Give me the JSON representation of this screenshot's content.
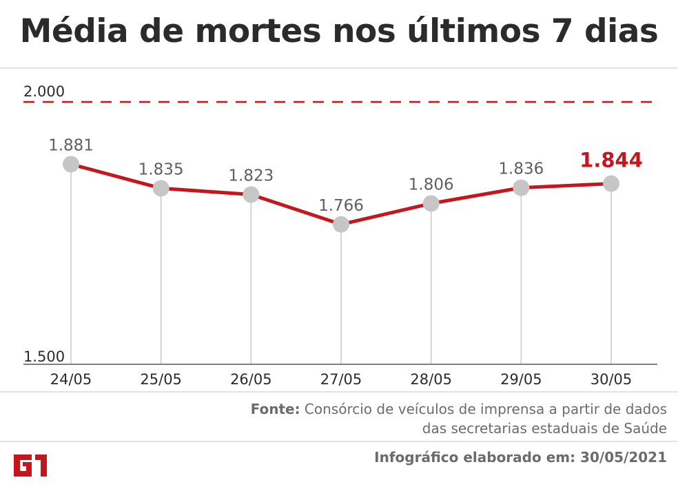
{
  "chart_data": {
    "type": "line",
    "title": "Média de mortes nos últimos 7 dias",
    "categories": [
      "24/05",
      "25/05",
      "26/05",
      "27/05",
      "28/05",
      "29/05",
      "30/05"
    ],
    "series": [
      {
        "values": [
          1881,
          1835,
          1823,
          1766,
          1806,
          1836,
          1844
        ],
        "labels": [
          "1.881",
          "1.835",
          "1.823",
          "1.766",
          "1.806",
          "1.836",
          "1.844"
        ]
      }
    ],
    "ylim": [
      1500,
      2000
    ],
    "yticks": [
      {
        "value": 1500,
        "label": "1.500"
      },
      {
        "value": 2000,
        "label": "2.000"
      }
    ],
    "reference_line": {
      "value": 2000,
      "style": "dashed"
    },
    "highlight_last": true,
    "colors": {
      "line": "#c4161c",
      "marker": "#c6c6c6",
      "label": "#5f5f5f",
      "highlight": "#c4161c",
      "grid": "#c8c8c8"
    }
  },
  "footer": {
    "source_label": "Fonte:",
    "source_text": "Consórcio de veículos de imprensa a partir de dados das secretarias estaduais de Saúde",
    "credit": "Infográfico elaborado em: 30/05/2021",
    "logo_text": "G1",
    "logo_color": "#c4161c"
  }
}
